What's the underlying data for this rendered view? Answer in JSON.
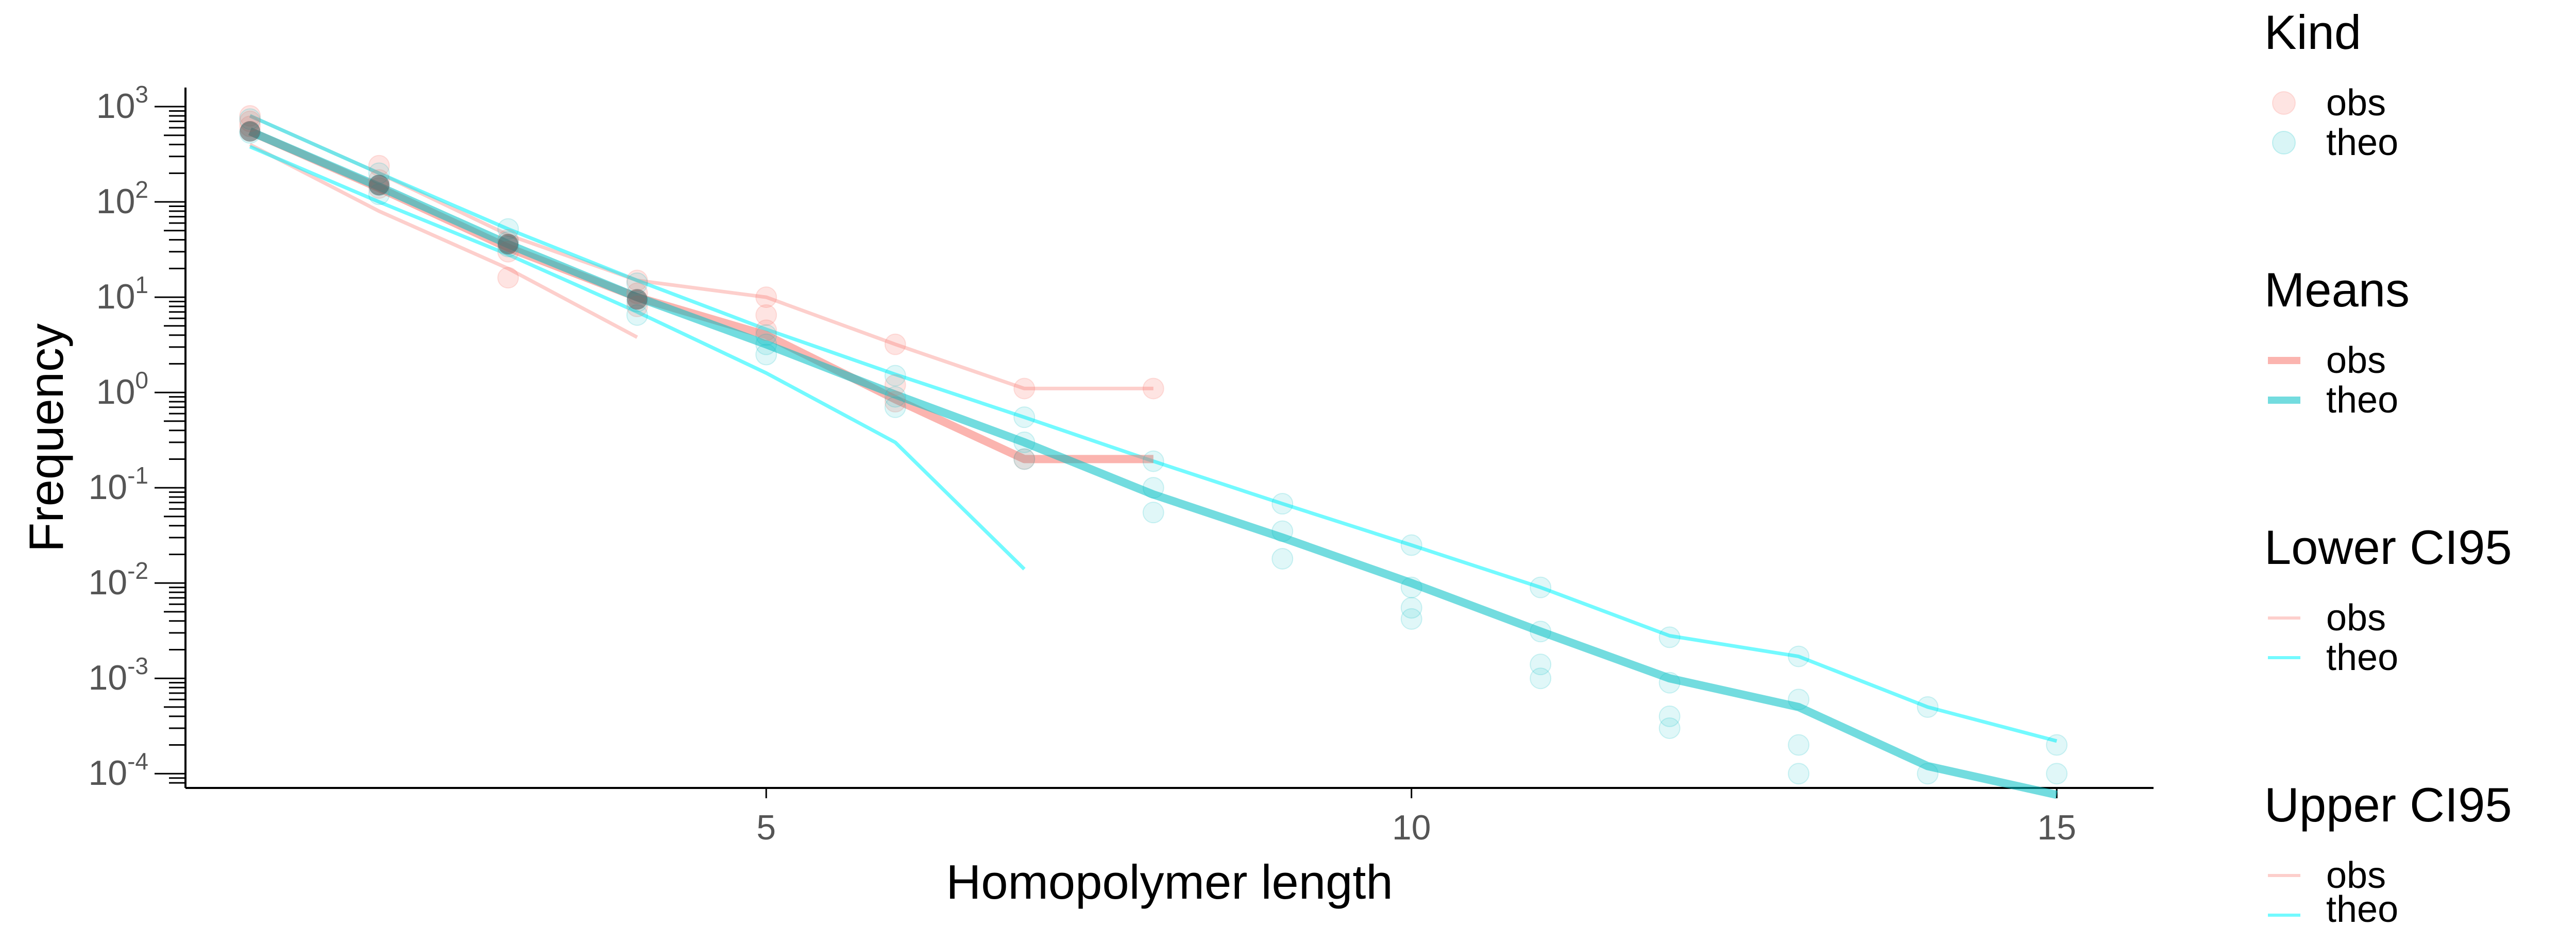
{
  "chart_data": {
    "type": "line",
    "xlabel": "Homopolymer length",
    "ylabel": "Frequency",
    "xlim": [
      0.5,
      15.75
    ],
    "x_ticks": [
      5,
      10,
      15
    ],
    "y_scale": "log10",
    "ylim_log10": [
      -4.15,
      3.2
    ],
    "y_ticks": [
      {
        "base": "10",
        "exp": "3",
        "log": 3
      },
      {
        "base": "10",
        "exp": "2",
        "log": 2
      },
      {
        "base": "10",
        "exp": "1",
        "log": 1
      },
      {
        "base": "10",
        "exp": "0",
        "log": 0
      },
      {
        "base": "10",
        "exp": "-1",
        "log": -1
      },
      {
        "base": "10",
        "exp": "-2",
        "log": -2
      },
      {
        "base": "10",
        "exp": "-3",
        "log": -3
      },
      {
        "base": "10",
        "exp": "-4",
        "log": -4
      }
    ],
    "colors": {
      "obs": "#F8766D",
      "theo": "#00BFC4",
      "theo_ci": "#00F5FF",
      "dark_point": "#555555"
    },
    "points_obs": [
      {
        "x": 1,
        "y": 800
      },
      {
        "x": 1,
        "y": 700
      },
      {
        "x": 1,
        "y": 620
      },
      {
        "x": 2,
        "y": 240
      },
      {
        "x": 2,
        "y": 170
      },
      {
        "x": 2,
        "y": 140
      },
      {
        "x": 3,
        "y": 40
      },
      {
        "x": 3,
        "y": 30
      },
      {
        "x": 3,
        "y": 16
      },
      {
        "x": 4,
        "y": 15
      },
      {
        "x": 4,
        "y": 11
      },
      {
        "x": 4,
        "y": 8
      },
      {
        "x": 5,
        "y": 10
      },
      {
        "x": 5,
        "y": 6.5
      },
      {
        "x": 5,
        "y": 4.5
      },
      {
        "x": 6,
        "y": 3.2
      },
      {
        "x": 6,
        "y": 1.2
      },
      {
        "x": 6,
        "y": 0.8
      },
      {
        "x": 7,
        "y": 1.1
      },
      {
        "x": 7,
        "y": 0.2
      },
      {
        "x": 8,
        "y": 1.1
      }
    ],
    "points_theo": [
      {
        "x": 1,
        "y": 740
      },
      {
        "x": 1,
        "y": 530
      },
      {
        "x": 2,
        "y": 200
      },
      {
        "x": 2,
        "y": 150
      },
      {
        "x": 2,
        "y": 120
      },
      {
        "x": 3,
        "y": 52
      },
      {
        "x": 3,
        "y": 38
      },
      {
        "x": 3,
        "y": 34
      },
      {
        "x": 4,
        "y": 14
      },
      {
        "x": 4,
        "y": 9
      },
      {
        "x": 4,
        "y": 6.5
      },
      {
        "x": 5,
        "y": 4
      },
      {
        "x": 5,
        "y": 3.2
      },
      {
        "x": 5,
        "y": 2.5
      },
      {
        "x": 6,
        "y": 1.5
      },
      {
        "x": 6,
        "y": 0.9
      },
      {
        "x": 6,
        "y": 0.7
      },
      {
        "x": 7,
        "y": 0.55
      },
      {
        "x": 7,
        "y": 0.3
      },
      {
        "x": 7,
        "y": 0.2
      },
      {
        "x": 8,
        "y": 0.19
      },
      {
        "x": 8,
        "y": 0.1
      },
      {
        "x": 8,
        "y": 0.055
      },
      {
        "x": 9,
        "y": 0.068
      },
      {
        "x": 9,
        "y": 0.035
      },
      {
        "x": 9,
        "y": 0.018
      },
      {
        "x": 10,
        "y": 0.025
      },
      {
        "x": 10,
        "y": 0.009
      },
      {
        "x": 10,
        "y": 0.0055
      },
      {
        "x": 10,
        "y": 0.0042
      },
      {
        "x": 11,
        "y": 0.009
      },
      {
        "x": 11,
        "y": 0.0031
      },
      {
        "x": 11,
        "y": 0.0014
      },
      {
        "x": 11,
        "y": 0.001
      },
      {
        "x": 12,
        "y": 0.0027
      },
      {
        "x": 12,
        "y": 0.0009
      },
      {
        "x": 12,
        "y": 0.0004
      },
      {
        "x": 12,
        "y": 0.0003
      },
      {
        "x": 13,
        "y": 0.0017
      },
      {
        "x": 13,
        "y": 0.0006
      },
      {
        "x": 13,
        "y": 0.0002
      },
      {
        "x": 13,
        "y": 0.0001
      },
      {
        "x": 14,
        "y": 0.0005
      },
      {
        "x": 14,
        "y": 0.0001
      },
      {
        "x": 15,
        "y": 0.0002
      },
      {
        "x": 15,
        "y": 0.0001
      }
    ],
    "points_dark": [
      {
        "x": 1,
        "y": 550
      },
      {
        "x": 2,
        "y": 150
      },
      {
        "x": 3,
        "y": 36
      },
      {
        "x": 4,
        "y": 9.5
      }
    ],
    "series": [
      {
        "kind": "means",
        "name": "obs",
        "color": "#F8766D",
        "points": [
          [
            1,
            550
          ],
          [
            2,
            140
          ],
          [
            3,
            33
          ],
          [
            4,
            10
          ],
          [
            5,
            4
          ],
          [
            6,
            0.85
          ],
          [
            7,
            0.2
          ],
          [
            8,
            0.2
          ]
        ]
      },
      {
        "kind": "means",
        "name": "theo",
        "color": "#00BFC4",
        "points": [
          [
            1,
            550
          ],
          [
            2,
            145
          ],
          [
            3,
            36
          ],
          [
            4,
            10
          ],
          [
            5,
            3.2
          ],
          [
            6,
            0.95
          ],
          [
            7,
            0.3
          ],
          [
            8,
            0.085
          ],
          [
            9,
            0.03
          ],
          [
            10,
            0.01
          ],
          [
            11,
            0.0031
          ],
          [
            12,
            0.001
          ],
          [
            13,
            0.0005
          ],
          [
            14,
            0.00012
          ],
          [
            15,
            6e-05
          ]
        ]
      },
      {
        "kind": "lower",
        "name": "obs",
        "color": "#F8766D",
        "points": [
          [
            1,
            400
          ],
          [
            2,
            80
          ],
          [
            3,
            20
          ],
          [
            4,
            3.8
          ]
        ]
      },
      {
        "kind": "lower",
        "name": "theo",
        "color": "#00F5FF",
        "points": [
          [
            1,
            380
          ],
          [
            2,
            100
          ],
          [
            3,
            28
          ],
          [
            4,
            7
          ],
          [
            5,
            1.6
          ],
          [
            6,
            0.3
          ],
          [
            7,
            0.014
          ]
        ]
      },
      {
        "kind": "upper",
        "name": "obs",
        "color": "#F8766D",
        "points": [
          [
            1,
            800
          ],
          [
            2,
            200
          ],
          [
            3,
            45
          ],
          [
            4,
            15
          ],
          [
            5,
            10
          ],
          [
            6,
            3.2
          ],
          [
            7,
            1.1
          ],
          [
            8,
            1.1
          ]
        ]
      },
      {
        "kind": "upper",
        "name": "theo",
        "color": "#00F5FF",
        "points": [
          [
            1,
            800
          ],
          [
            2,
            200
          ],
          [
            3,
            52
          ],
          [
            4,
            15
          ],
          [
            5,
            4.6
          ],
          [
            6,
            1.55
          ],
          [
            7,
            0.55
          ],
          [
            8,
            0.19
          ],
          [
            9,
            0.068
          ],
          [
            10,
            0.025
          ],
          [
            11,
            0.009
          ],
          [
            12,
            0.0028
          ],
          [
            13,
            0.0017
          ],
          [
            14,
            0.0005
          ],
          [
            15,
            0.00022
          ]
        ]
      }
    ]
  },
  "legend": {
    "kind": {
      "title": "Kind",
      "items": [
        "obs",
        "theo"
      ]
    },
    "means": {
      "title": "Means",
      "items": [
        "obs",
        "theo"
      ]
    },
    "lower": {
      "title": "Lower CI95",
      "items": [
        "obs",
        "theo"
      ]
    },
    "upper": {
      "title": "Upper CI95",
      "items": [
        "obs",
        "theo"
      ]
    }
  }
}
